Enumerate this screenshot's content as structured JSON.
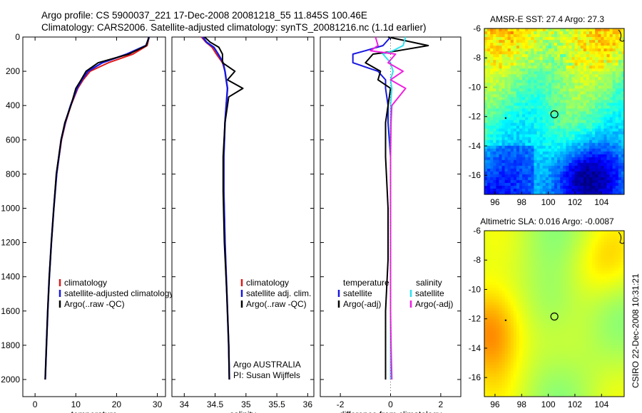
{
  "figure": {
    "title_line1": "Argo profile: CS 5900037_221 17-Dec-2008 20081218_55 11.845S 100.46E",
    "title_line2": "Climatology: CARS2006. Satellite-adjusted climatology: synTS_20081216.nc (1.1d earlier)",
    "side_label": "CSIRO 22-Dec-2008 10:31:21"
  },
  "colors": {
    "climatology": "#e01818",
    "satellite": "#1818e0",
    "argo": "#000000",
    "satellite_diff": "#30e0f0",
    "argo_adj_diff": "#f020e0"
  },
  "chart_data": [
    {
      "id": "temperature",
      "type": "line",
      "xlabel": "temperature",
      "ylabel": "",
      "xlim": [
        -3,
        32
      ],
      "ylim": [
        2100,
        0
      ],
      "xticks": [
        0,
        10,
        20,
        30
      ],
      "yticks": [
        0,
        200,
        400,
        600,
        800,
        1000,
        1200,
        1400,
        1600,
        1800,
        2000
      ],
      "legend": [
        "climatology",
        "satellite-adjusted climatology",
        "Argo(..raw -QC)"
      ],
      "depth": [
        0,
        50,
        100,
        150,
        200,
        250,
        300,
        400,
        500,
        600,
        800,
        1000,
        1200,
        1400,
        1600,
        1800,
        2000
      ],
      "series": [
        {
          "name": "climatology",
          "color_key": "climatology",
          "values": [
            28.0,
            27.5,
            24.0,
            18.0,
            13.5,
            11.8,
            10.5,
            8.8,
            7.5,
            6.5,
            5.3,
            4.6,
            4.0,
            3.5,
            3.1,
            2.8,
            2.5
          ]
        },
        {
          "name": "satellite-adjusted climatology",
          "color_key": "satellite",
          "values": [
            28.0,
            27.2,
            22.5,
            16.5,
            13.0,
            11.5,
            10.3,
            8.7,
            7.4,
            6.4,
            5.3,
            4.6,
            4.0,
            3.5,
            3.1,
            2.8,
            2.5
          ]
        },
        {
          "name": "Argo(..raw -QC)",
          "color_key": "argo",
          "values": [
            27.9,
            27.3,
            23.0,
            15.5,
            12.5,
            11.3,
            10.0,
            8.8,
            7.3,
            6.4,
            5.2,
            4.6,
            4.0,
            3.5,
            3.1,
            2.8,
            2.5
          ]
        }
      ]
    },
    {
      "id": "salinity",
      "type": "line",
      "xlabel": "salinity",
      "ylabel": "",
      "xlim": [
        33.8,
        36.1
      ],
      "ylim": [
        2100,
        0
      ],
      "xticks": [
        34,
        34.5,
        35,
        35.5,
        36
      ],
      "legend": [
        "climatology",
        "satellite adj. clim.",
        "Argo(..raw -QC)"
      ],
      "annotation": [
        "Argo AUSTRALIA",
        "PI: Susan Wijffels"
      ],
      "depth": [
        0,
        30,
        60,
        100,
        150,
        200,
        250,
        300,
        350,
        400,
        500,
        700,
        900,
        1200,
        1500,
        1800,
        2000
      ],
      "series": [
        {
          "name": "climatology",
          "color_key": "climatology",
          "values": [
            34.28,
            34.35,
            34.45,
            34.52,
            34.62,
            34.66,
            34.68,
            34.7,
            34.69,
            34.68,
            34.66,
            34.64,
            34.64,
            34.66,
            34.69,
            34.72,
            34.73
          ]
        },
        {
          "name": "satellite adj. clim.",
          "color_key": "satellite",
          "values": [
            34.3,
            34.36,
            34.48,
            34.55,
            34.63,
            34.66,
            34.68,
            34.7,
            34.69,
            34.68,
            34.66,
            34.64,
            34.64,
            34.66,
            34.69,
            34.72,
            34.73
          ]
        },
        {
          "name": "Argo(..raw -QC)",
          "color_key": "argo",
          "values": [
            34.33,
            34.42,
            34.56,
            34.62,
            34.62,
            34.82,
            34.7,
            34.95,
            34.72,
            34.7,
            34.66,
            34.63,
            34.63,
            34.65,
            34.69,
            34.72,
            34.73
          ]
        }
      ]
    },
    {
      "id": "difference",
      "type": "line",
      "xlabel": "difference from climatology",
      "ylabel": "",
      "xlim": [
        -2.8,
        2.8
      ],
      "ylim": [
        2100,
        0
      ],
      "xticks": [
        -2,
        0,
        2
      ],
      "legend_left": [
        "temperature",
        "satellite",
        "Argo(-adj)"
      ],
      "legend_right": [
        "salinity",
        "satellite",
        "Argo(-adj)"
      ],
      "depth": [
        0,
        50,
        80,
        100,
        150,
        200,
        250,
        300,
        400,
        500,
        700,
        1000,
        1300,
        1600,
        1800,
        2000
      ],
      "series": [
        {
          "name": "temperature satellite",
          "color_key": "satellite",
          "values": [
            0.0,
            -0.3,
            -1.0,
            -1.5,
            -1.5,
            -0.5,
            -0.2,
            -0.2,
            -0.1,
            -0.1,
            0.0,
            0.0,
            0.0,
            0.0,
            0.0,
            0.0
          ]
        },
        {
          "name": "temperature Argo(-adj)",
          "color_key": "argo",
          "values": [
            -0.1,
            1.5,
            0.3,
            -0.7,
            -1.0,
            -0.4,
            -0.5,
            0.0,
            -0.1,
            -0.2,
            -0.2,
            -0.1,
            -0.1,
            -0.2,
            -0.2,
            -0.2
          ]
        },
        {
          "name": "salinity satellite",
          "color_key": "satellite_diff",
          "values": [
            0.6,
            0.5,
            0.1,
            -0.3,
            0.0,
            0.1,
            0.0,
            0.05,
            0.0,
            0.0,
            0.0,
            0.0,
            0.0,
            0.0,
            0.0,
            0.0
          ]
        },
        {
          "name": "salinity Argo(-adj)",
          "color_key": "argo_adj_diff",
          "values": [
            -0.6,
            -0.5,
            -0.8,
            0.2,
            -0.1,
            0.5,
            0.0,
            0.6,
            0.05,
            0.02,
            0.0,
            0.0,
            0.0,
            0.0,
            0.02,
            0.05
          ]
        }
      ]
    },
    {
      "id": "sst_map",
      "type": "heatmap",
      "title": "AMSR-E SST: 27.4 Argo: 27.3",
      "xlim": [
        95.2,
        105.7
      ],
      "ylim": [
        -17.3,
        -6
      ],
      "xticks": [
        96,
        98,
        100,
        102,
        104
      ],
      "yticks": [
        -6,
        -8,
        -10,
        -12,
        -14,
        -16
      ],
      "float_position": [
        100.46,
        -11.845
      ]
    },
    {
      "id": "sla_map",
      "type": "heatmap",
      "title": "Altimetric SLA: 0.016 Argo: -0.0087",
      "xlim": [
        95.2,
        105.7
      ],
      "ylim": [
        -17.3,
        -6
      ],
      "xticks": [
        96,
        98,
        100,
        102,
        104
      ],
      "yticks": [
        -6,
        -8,
        -10,
        -12,
        -14,
        -16
      ],
      "float_position": [
        100.46,
        -11.845
      ]
    }
  ]
}
